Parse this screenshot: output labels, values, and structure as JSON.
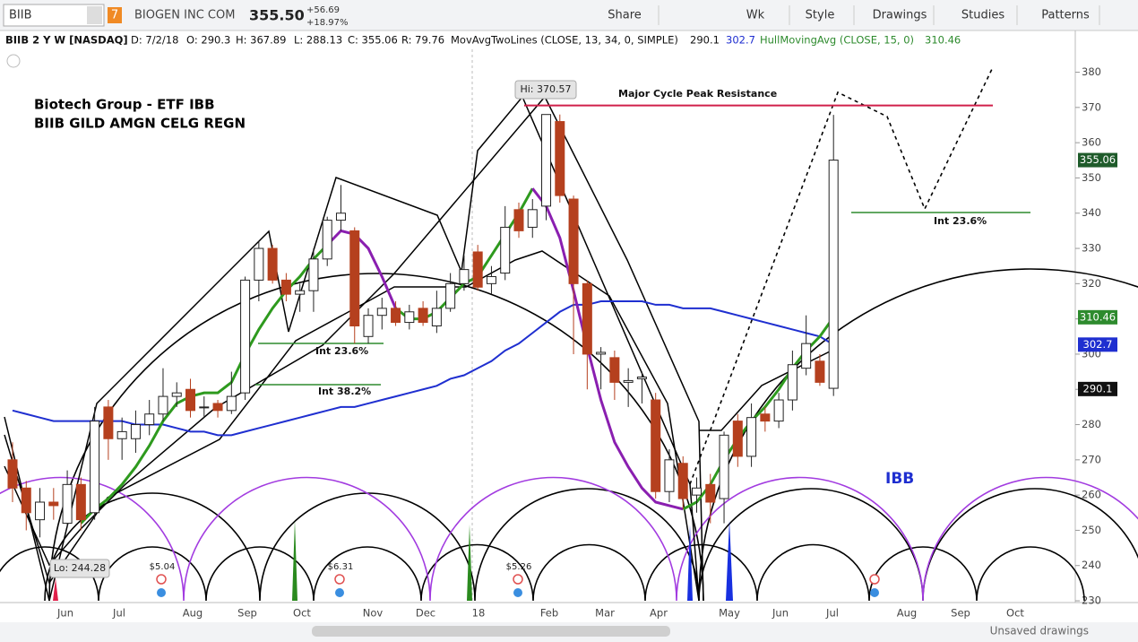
{
  "toolbar": {
    "symbol": "BIIB",
    "badge": "7",
    "company": "BIOGEN INC COM",
    "price": "355.50",
    "change": "+56.69",
    "change_pct": "+18.97%",
    "buttons": [
      "Share",
      "Wk",
      "Style",
      "Drawings",
      "Studies",
      "Patterns"
    ]
  },
  "header": {
    "instrument": "BIIB 2 Y W [NASDAQ]",
    "date": "D: 7/2/18",
    "open": "O: 290.3",
    "high": "H: 367.89",
    "low": "L: 288.13",
    "close": "C: 355.06",
    "range": "R: 79.76",
    "study1": "MovAvgTwoLines (CLOSE, 13, 34, 0, SIMPLE)",
    "study1_v1": "290.1",
    "study1_v2": "302.7",
    "study2": "HullMovingAvg (CLOSE, 15, 0)",
    "study2_v": "310.46"
  },
  "annotations": {
    "group": "Biotech Group - ETF IBB",
    "tickers": "BIIB  GILD  AMGN  CELG  REGN",
    "hi": "Hi: 370.57",
    "resistance": "Major Cycle Peak Resistance",
    "int236": "Int 23.6%",
    "int382": "Int 38.2%",
    "ibb": "IBB",
    "lo": "Lo: 244.28",
    "earnings": [
      "$5.04",
      "$6.31",
      "$5.26"
    ]
  },
  "footer": {
    "status": "Unsaved drawings"
  },
  "chart_data": {
    "type": "candlestick",
    "ylim": [
      229.5,
      386.5
    ],
    "yticks": [
      230,
      240,
      250,
      260,
      270,
      280,
      290,
      300,
      310,
      320,
      330,
      340,
      350,
      360,
      370,
      380
    ],
    "months": [
      "Jun",
      "Jul",
      "Aug",
      "Sep",
      "Oct",
      "Nov",
      "Dec",
      "18",
      "Feb",
      "Mar",
      "Apr",
      "May",
      "Jun",
      "Jul",
      "Aug",
      "Sep",
      "Oct"
    ],
    "up_color": "#ffffff",
    "down_color": "#b5401e",
    "price_tags": [
      {
        "value": 355.06,
        "label": "355.06",
        "color": "#1e5b2a"
      },
      {
        "value": 310.46,
        "label": "310.46",
        "color": "#2e8b2e"
      },
      {
        "value": 302.7,
        "label": "302.7",
        "color": "#1f2fd0"
      },
      {
        "value": 290.1,
        "label": "290.1",
        "color": "#111111"
      }
    ],
    "resistance": 370.57,
    "candles": [
      {
        "o": 270,
        "h": 275,
        "l": 258,
        "c": 262
      },
      {
        "o": 262,
        "h": 264,
        "l": 250,
        "c": 255
      },
      {
        "o": 253,
        "h": 262,
        "l": 248,
        "c": 258
      },
      {
        "o": 258,
        "h": 262,
        "l": 253,
        "c": 257
      },
      {
        "o": 252,
        "h": 267,
        "l": 251,
        "c": 263
      },
      {
        "o": 263,
        "h": 265,
        "l": 250,
        "c": 253
      },
      {
        "o": 255,
        "h": 285,
        "l": 253,
        "c": 281
      },
      {
        "o": 285,
        "h": 287,
        "l": 270,
        "c": 276
      },
      {
        "o": 276,
        "h": 282,
        "l": 270,
        "c": 278
      },
      {
        "o": 276,
        "h": 284,
        "l": 272,
        "c": 280
      },
      {
        "o": 280,
        "h": 287,
        "l": 277,
        "c": 283
      },
      {
        "o": 283,
        "h": 296,
        "l": 281,
        "c": 288
      },
      {
        "o": 288,
        "h": 292,
        "l": 285,
        "c": 289
      },
      {
        "o": 290,
        "h": 293,
        "l": 282,
        "c": 284
      },
      {
        "o": 285,
        "h": 288,
        "l": 282,
        "c": 285
      },
      {
        "o": 286,
        "h": 287,
        "l": 282,
        "c": 284
      },
      {
        "o": 284,
        "h": 295,
        "l": 283,
        "c": 288
      },
      {
        "o": 289,
        "h": 322,
        "l": 287,
        "c": 321
      },
      {
        "o": 321,
        "h": 332,
        "l": 315,
        "c": 330
      },
      {
        "o": 330,
        "h": 331,
        "l": 320,
        "c": 321
      },
      {
        "o": 321,
        "h": 323,
        "l": 315,
        "c": 317
      },
      {
        "o": 317,
        "h": 320,
        "l": 312,
        "c": 318
      },
      {
        "o": 318,
        "h": 330,
        "l": 312,
        "c": 327
      },
      {
        "o": 327,
        "h": 339,
        "l": 325,
        "c": 338
      },
      {
        "o": 338,
        "h": 348,
        "l": 335,
        "c": 340
      },
      {
        "o": 335,
        "h": 336,
        "l": 303,
        "c": 308
      },
      {
        "o": 305,
        "h": 313,
        "l": 303,
        "c": 311
      },
      {
        "o": 311,
        "h": 316,
        "l": 307,
        "c": 313
      },
      {
        "o": 313,
        "h": 315,
        "l": 308,
        "c": 309
      },
      {
        "o": 309,
        "h": 314,
        "l": 307,
        "c": 312
      },
      {
        "o": 313,
        "h": 315,
        "l": 308,
        "c": 309
      },
      {
        "o": 308,
        "h": 318,
        "l": 306,
        "c": 313
      },
      {
        "o": 313,
        "h": 323,
        "l": 312,
        "c": 320
      },
      {
        "o": 320,
        "h": 328,
        "l": 318,
        "c": 324
      },
      {
        "o": 329,
        "h": 331,
        "l": 318,
        "c": 319
      },
      {
        "o": 320,
        "h": 325,
        "l": 317,
        "c": 322
      },
      {
        "o": 323,
        "h": 342,
        "l": 321,
        "c": 336
      },
      {
        "o": 341,
        "h": 343,
        "l": 333,
        "c": 335
      },
      {
        "o": 336,
        "h": 344,
        "l": 333,
        "c": 341
      },
      {
        "o": 342,
        "h": 368,
        "l": 338,
        "c": 368
      },
      {
        "o": 366,
        "h": 368,
        "l": 343,
        "c": 345
      },
      {
        "o": 344,
        "h": 345,
        "l": 300,
        "c": 320
      },
      {
        "o": 320,
        "h": 321,
        "l": 290,
        "c": 300
      },
      {
        "o": 300,
        "h": 302,
        "l": 290,
        "c": 300.5
      },
      {
        "o": 299,
        "h": 301,
        "l": 287,
        "c": 292
      },
      {
        "o": 292,
        "h": 296,
        "l": 285,
        "c": 292.5
      },
      {
        "o": 293,
        "h": 295,
        "l": 286,
        "c": 293.5
      },
      {
        "o": 287,
        "h": 289,
        "l": 259,
        "c": 261
      },
      {
        "o": 261,
        "h": 273,
        "l": 258,
        "c": 270
      },
      {
        "o": 269,
        "h": 271,
        "l": 256,
        "c": 259
      },
      {
        "o": 260,
        "h": 265,
        "l": 255,
        "c": 262
      },
      {
        "o": 263,
        "h": 266,
        "l": 252,
        "c": 258
      },
      {
        "o": 259,
        "h": 278,
        "l": 252,
        "c": 277
      },
      {
        "o": 281,
        "h": 283,
        "l": 268,
        "c": 271
      },
      {
        "o": 271,
        "h": 286,
        "l": 268,
        "c": 282
      },
      {
        "o": 283,
        "h": 285,
        "l": 278,
        "c": 281
      },
      {
        "o": 281,
        "h": 289,
        "l": 279,
        "c": 287
      },
      {
        "o": 287,
        "h": 301,
        "l": 284,
        "c": 297
      },
      {
        "o": 296,
        "h": 311,
        "l": 294,
        "c": 303
      },
      {
        "o": 298,
        "h": 300,
        "l": 291,
        "c": 292
      },
      {
        "o": 290.3,
        "h": 367.89,
        "l": 288.13,
        "c": 355.06
      }
    ],
    "series": [
      {
        "color": "#1f2fd0",
        "values": [
          284,
          283,
          282,
          281,
          281,
          281,
          281,
          281,
          281,
          280,
          280,
          280,
          279,
          278,
          278,
          277,
          277,
          278,
          279,
          280,
          281,
          282,
          283,
          284,
          285,
          285,
          286,
          287,
          288,
          289,
          290,
          291,
          293,
          294,
          296,
          298,
          301,
          303,
          306,
          309,
          312,
          314,
          314,
          315,
          315,
          315,
          315,
          314,
          314,
          313,
          313,
          313,
          312,
          311,
          310,
          309,
          308,
          307,
          306,
          305,
          302.7
        ]
      },
      {
        "color": "#2e9a1e",
        "values": [
          null,
          null,
          null,
          null,
          null,
          252,
          256,
          259,
          263,
          268,
          274,
          281,
          286,
          288,
          289,
          289,
          292,
          300,
          307,
          313,
          318,
          322,
          327,
          331,
          null,
          null,
          null,
          null,
          313,
          310,
          310,
          312,
          316,
          320,
          322,
          328,
          334,
          340,
          347,
          null,
          null,
          null,
          null,
          null,
          null,
          null,
          null,
          null,
          null,
          256,
          258,
          263,
          270,
          276,
          281,
          285,
          290,
          296,
          301,
          305,
          310.46
        ]
      },
      {
        "color": "#8a1fb0",
        "values": [
          null,
          null,
          null,
          null,
          null,
          null,
          null,
          null,
          null,
          null,
          null,
          null,
          null,
          null,
          null,
          null,
          null,
          null,
          null,
          null,
          null,
          null,
          null,
          331,
          335,
          334,
          330,
          322,
          313,
          null,
          null,
          null,
          null,
          null,
          null,
          null,
          null,
          null,
          347,
          342,
          333,
          318,
          302,
          287,
          275,
          268,
          262,
          258,
          257,
          256,
          null,
          null,
          null,
          null,
          null,
          null,
          null,
          null,
          null,
          null,
          null
        ]
      }
    ]
  }
}
